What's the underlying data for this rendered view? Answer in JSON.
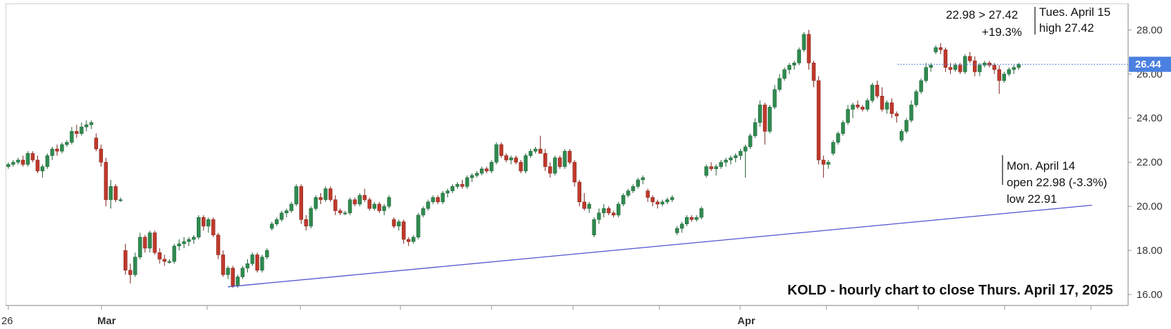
{
  "chart_data": {
    "type": "candlestick",
    "title": "KOLD - hourly chart to close Thurs. April 17, 2025",
    "y_axis": {
      "ticks": [
        "16.00",
        "18.00",
        "20.00",
        "22.00",
        "24.00",
        "26.00",
        "28.00"
      ],
      "ylim": [
        15.5,
        29.2
      ],
      "position": "right"
    },
    "x_axis": {
      "labels": [
        {
          "text": "26",
          "date": "2025-02-26",
          "bold": false
        },
        {
          "text": "Mar",
          "date": "2025-03-03",
          "bold": true
        },
        {
          "text": "Apr",
          "date": "2025-04-01",
          "bold": true
        }
      ]
    },
    "current_price": {
      "label": "26.44",
      "value": 26.44,
      "color": "#4a80e0"
    },
    "colors": {
      "up": "#2e8b4f",
      "down": "#c0392b",
      "trendline": "#5050d0",
      "up_wick": "#1e5e35",
      "down_wick": "#7a1f17"
    },
    "candles": [
      [
        21.8,
        22.0,
        21.7,
        21.9
      ],
      [
        21.9,
        22.1,
        21.8,
        22.0
      ],
      [
        22.0,
        22.2,
        21.9,
        22.1
      ],
      [
        22.1,
        22.3,
        21.8,
        21.9
      ],
      [
        21.9,
        22.5,
        21.8,
        22.4
      ],
      [
        22.4,
        22.5,
        22.0,
        22.1
      ],
      [
        22.1,
        22.3,
        21.5,
        21.6
      ],
      [
        21.6,
        21.9,
        21.3,
        21.8
      ],
      [
        21.8,
        22.4,
        21.7,
        22.3
      ],
      [
        22.3,
        22.7,
        22.1,
        22.6
      ],
      [
        22.6,
        22.8,
        22.3,
        22.5
      ],
      [
        22.5,
        22.9,
        22.4,
        22.8
      ],
      [
        22.8,
        23.0,
        22.7,
        22.9
      ],
      [
        22.9,
        23.6,
        22.8,
        23.4
      ],
      [
        23.4,
        23.7,
        23.1,
        23.3
      ],
      [
        23.3,
        23.8,
        23.2,
        23.6
      ],
      [
        23.6,
        23.9,
        23.4,
        23.7
      ],
      [
        23.7,
        23.9,
        23.5,
        23.8
      ],
      [
        23.1,
        23.3,
        22.5,
        22.6
      ],
      [
        22.6,
        22.8,
        21.8,
        22.0
      ],
      [
        22.0,
        22.2,
        20.0,
        20.3
      ],
      [
        20.3,
        21.2,
        19.9,
        20.9
      ],
      [
        20.9,
        21.0,
        20.2,
        20.3
      ],
      [
        20.3,
        20.4,
        20.2,
        20.3
      ],
      [
        18.0,
        18.3,
        16.9,
        17.1
      ],
      [
        17.1,
        17.4,
        16.5,
        16.9
      ],
      [
        16.9,
        17.9,
        16.8,
        17.7
      ],
      [
        17.7,
        18.8,
        17.6,
        18.6
      ],
      [
        18.6,
        18.7,
        17.9,
        18.1
      ],
      [
        18.1,
        18.9,
        17.9,
        18.8
      ],
      [
        18.8,
        18.9,
        17.8,
        17.9
      ],
      [
        17.9,
        18.1,
        17.4,
        17.6
      ],
      [
        17.6,
        17.8,
        17.3,
        17.5
      ],
      [
        17.5,
        17.6,
        17.4,
        17.5
      ],
      [
        17.5,
        18.3,
        17.4,
        18.2
      ],
      [
        18.2,
        18.5,
        18.0,
        18.3
      ],
      [
        18.3,
        18.6,
        18.1,
        18.4
      ],
      [
        18.4,
        18.6,
        18.2,
        18.5
      ],
      [
        18.5,
        18.7,
        18.3,
        18.6
      ],
      [
        18.6,
        19.6,
        18.5,
        19.5
      ],
      [
        19.5,
        19.6,
        18.9,
        19.1
      ],
      [
        19.1,
        19.5,
        18.8,
        19.4
      ],
      [
        19.4,
        19.5,
        18.6,
        18.7
      ],
      [
        18.7,
        18.8,
        17.6,
        17.8
      ],
      [
        17.8,
        18.0,
        16.8,
        16.9
      ],
      [
        16.9,
        17.3,
        16.7,
        17.2
      ],
      [
        17.2,
        17.3,
        16.3,
        16.4
      ],
      [
        16.4,
        16.9,
        16.3,
        16.8
      ],
      [
        16.8,
        17.3,
        16.7,
        17.2
      ],
      [
        17.2,
        17.6,
        17.0,
        17.4
      ],
      [
        17.4,
        17.9,
        17.3,
        17.8
      ],
      [
        17.8,
        17.9,
        17.0,
        17.1
      ],
      [
        17.1,
        17.8,
        17.0,
        17.7
      ],
      [
        17.7,
        18.1,
        17.6,
        18.0
      ],
      [
        19.0,
        19.3,
        18.9,
        19.2
      ],
      [
        19.2,
        19.5,
        19.1,
        19.4
      ],
      [
        19.4,
        19.8,
        19.3,
        19.7
      ],
      [
        19.7,
        19.9,
        19.5,
        19.8
      ],
      [
        19.8,
        20.2,
        19.7,
        20.1
      ],
      [
        20.1,
        21.0,
        20.0,
        20.9
      ],
      [
        20.9,
        21.0,
        19.2,
        19.4
      ],
      [
        19.4,
        19.6,
        18.9,
        19.1
      ],
      [
        19.1,
        20.0,
        19.0,
        19.9
      ],
      [
        19.9,
        20.5,
        19.8,
        20.4
      ],
      [
        20.4,
        20.6,
        20.1,
        20.3
      ],
      [
        20.3,
        20.9,
        20.2,
        20.8
      ],
      [
        20.8,
        20.9,
        20.2,
        20.3
      ],
      [
        20.3,
        20.5,
        19.6,
        19.8
      ],
      [
        19.8,
        19.9,
        19.6,
        19.7
      ],
      [
        19.7,
        19.8,
        19.6,
        19.7
      ],
      [
        19.7,
        20.4,
        19.6,
        20.3
      ],
      [
        20.3,
        20.4,
        20.0,
        20.1
      ],
      [
        20.1,
        20.6,
        20.0,
        20.5
      ],
      [
        20.5,
        20.8,
        20.2,
        20.3
      ],
      [
        20.3,
        20.4,
        19.8,
        19.9
      ],
      [
        19.9,
        20.2,
        19.8,
        20.1
      ],
      [
        20.1,
        20.2,
        19.7,
        19.8
      ],
      [
        19.8,
        20.1,
        19.6,
        20.0
      ],
      [
        20.0,
        20.5,
        19.9,
        20.4
      ],
      [
        19.4,
        19.5,
        19.0,
        19.1
      ],
      [
        19.1,
        19.4,
        18.9,
        19.3
      ],
      [
        19.3,
        19.4,
        18.3,
        18.5
      ],
      [
        18.5,
        18.6,
        18.2,
        18.4
      ],
      [
        18.4,
        18.7,
        18.3,
        18.6
      ],
      [
        18.6,
        19.7,
        18.5,
        19.6
      ],
      [
        19.6,
        20.0,
        19.5,
        19.9
      ],
      [
        19.9,
        20.3,
        19.8,
        20.2
      ],
      [
        20.2,
        20.5,
        20.1,
        20.4
      ],
      [
        20.4,
        20.5,
        20.1,
        20.2
      ],
      [
        20.2,
        20.7,
        20.1,
        20.6
      ],
      [
        20.6,
        20.8,
        20.4,
        20.7
      ],
      [
        20.7,
        21.0,
        20.6,
        20.9
      ],
      [
        20.9,
        21.1,
        20.8,
        21.0
      ],
      [
        21.0,
        21.2,
        20.8,
        20.9
      ],
      [
        20.9,
        21.4,
        20.8,
        21.3
      ],
      [
        21.3,
        21.5,
        21.1,
        21.4
      ],
      [
        21.4,
        21.6,
        21.3,
        21.5
      ],
      [
        21.5,
        21.8,
        21.4,
        21.7
      ],
      [
        21.7,
        21.8,
        21.5,
        21.6
      ],
      [
        21.6,
        22.1,
        21.5,
        22.0
      ],
      [
        22.0,
        22.9,
        21.9,
        22.8
      ],
      [
        22.8,
        22.9,
        22.2,
        22.3
      ],
      [
        22.3,
        22.4,
        22.0,
        22.1
      ],
      [
        22.1,
        22.3,
        21.9,
        22.2
      ],
      [
        22.2,
        22.3,
        21.9,
        22.0
      ],
      [
        22.0,
        22.1,
        21.5,
        21.6
      ],
      [
        21.6,
        22.4,
        21.5,
        22.3
      ],
      [
        22.3,
        22.6,
        22.2,
        22.5
      ],
      [
        22.5,
        22.7,
        22.4,
        22.6
      ],
      [
        22.6,
        23.2,
        22.5,
        22.4
      ],
      [
        22.4,
        22.6,
        21.6,
        21.8
      ],
      [
        21.8,
        22.0,
        21.3,
        21.5
      ],
      [
        21.5,
        22.3,
        21.4,
        22.2
      ],
      [
        22.2,
        22.3,
        21.7,
        21.8
      ],
      [
        21.8,
        22.6,
        21.7,
        22.5
      ],
      [
        22.5,
        22.6,
        21.9,
        22.0
      ],
      [
        22.0,
        22.1,
        20.9,
        21.1
      ],
      [
        21.1,
        21.2,
        20.0,
        20.2
      ],
      [
        20.2,
        20.6,
        19.8,
        19.9
      ],
      [
        19.9,
        20.2,
        19.7,
        20.1
      ],
      [
        18.7,
        19.5,
        18.6,
        19.4
      ],
      [
        19.4,
        19.9,
        19.2,
        19.7
      ],
      [
        19.7,
        20.1,
        19.5,
        19.9
      ],
      [
        19.9,
        20.0,
        19.6,
        19.7
      ],
      [
        19.7,
        19.8,
        19.5,
        19.6
      ],
      [
        19.6,
        20.2,
        19.5,
        20.1
      ],
      [
        20.1,
        20.6,
        20.0,
        20.5
      ],
      [
        20.5,
        20.8,
        20.4,
        20.7
      ],
      [
        20.7,
        21.0,
        20.6,
        20.9
      ],
      [
        20.9,
        21.3,
        20.8,
        21.2
      ],
      [
        21.2,
        21.4,
        21.0,
        21.3
      ],
      [
        20.7,
        20.8,
        20.2,
        20.4
      ],
      [
        20.4,
        20.5,
        20.0,
        20.2
      ],
      [
        20.2,
        20.3,
        19.9,
        20.1
      ],
      [
        20.1,
        20.3,
        20.0,
        20.2
      ],
      [
        20.2,
        20.4,
        20.1,
        20.3
      ],
      [
        20.3,
        20.5,
        20.2,
        20.4
      ],
      [
        18.8,
        19.1,
        18.7,
        19.0
      ],
      [
        19.0,
        19.3,
        18.8,
        19.2
      ],
      [
        19.2,
        19.6,
        19.1,
        19.5
      ],
      [
        19.5,
        19.6,
        19.3,
        19.4
      ],
      [
        19.4,
        19.6,
        19.3,
        19.5
      ],
      [
        19.5,
        20.0,
        19.4,
        19.9
      ],
      [
        21.4,
        21.9,
        21.3,
        21.8
      ],
      [
        21.8,
        22.0,
        21.6,
        21.7
      ],
      [
        21.7,
        21.9,
        21.4,
        21.8
      ],
      [
        21.8,
        22.1,
        21.7,
        22.0
      ],
      [
        22.0,
        22.2,
        21.8,
        22.1
      ],
      [
        22.1,
        22.3,
        21.9,
        22.2
      ],
      [
        22.2,
        22.4,
        22.0,
        22.3
      ],
      [
        22.3,
        22.6,
        22.1,
        22.5
      ],
      [
        22.5,
        22.8,
        21.3,
        22.7
      ],
      [
        22.7,
        23.3,
        22.6,
        23.2
      ],
      [
        23.2,
        24.0,
        23.1,
        23.8
      ],
      [
        23.8,
        24.8,
        23.6,
        24.6
      ],
      [
        24.6,
        24.7,
        22.8,
        23.4
      ],
      [
        23.4,
        24.6,
        23.3,
        24.5
      ],
      [
        24.5,
        25.5,
        24.4,
        25.3
      ],
      [
        25.3,
        26.0,
        25.2,
        25.8
      ],
      [
        25.8,
        26.3,
        25.7,
        26.2
      ],
      [
        26.2,
        26.5,
        26.0,
        26.4
      ],
      [
        26.4,
        26.6,
        26.2,
        26.5
      ],
      [
        26.5,
        27.2,
        26.4,
        27.1
      ],
      [
        27.1,
        27.9,
        27.0,
        27.8
      ],
      [
        27.8,
        28.0,
        26.2,
        26.5
      ],
      [
        26.5,
        26.6,
        25.4,
        25.7
      ],
      [
        25.7,
        25.9,
        21.9,
        22.1
      ],
      [
        22.1,
        22.3,
        21.3,
        21.9
      ],
      [
        21.9,
        22.1,
        21.7,
        22.0
      ],
      [
        22.4,
        23.0,
        22.3,
        22.9
      ],
      [
        22.9,
        23.4,
        22.8,
        23.3
      ],
      [
        23.3,
        23.9,
        23.2,
        23.8
      ],
      [
        23.8,
        24.6,
        23.7,
        24.4
      ],
      [
        24.4,
        24.7,
        24.0,
        24.6
      ],
      [
        24.6,
        24.8,
        24.4,
        24.5
      ],
      [
        24.5,
        24.6,
        24.3,
        24.4
      ],
      [
        24.4,
        24.9,
        24.3,
        24.8
      ],
      [
        24.8,
        25.6,
        24.7,
        25.5
      ],
      [
        25.5,
        25.7,
        24.9,
        25.0
      ],
      [
        25.0,
        25.4,
        24.3,
        24.4
      ],
      [
        24.4,
        24.8,
        24.2,
        24.7
      ],
      [
        24.7,
        24.9,
        24.0,
        24.2
      ],
      [
        24.2,
        24.3,
        23.8,
        24.1
      ],
      [
        23.0,
        23.5,
        22.9,
        23.4
      ],
      [
        23.4,
        24.0,
        23.3,
        23.9
      ],
      [
        23.9,
        24.8,
        23.8,
        24.6
      ],
      [
        24.6,
        25.3,
        24.5,
        25.2
      ],
      [
        25.2,
        25.8,
        25.1,
        25.7
      ],
      [
        25.7,
        26.5,
        25.6,
        26.3
      ],
      [
        26.3,
        26.5,
        26.1,
        26.4
      ],
      [
        27.0,
        27.3,
        26.9,
        27.2
      ],
      [
        27.2,
        27.4,
        26.9,
        27.1
      ],
      [
        27.1,
        27.2,
        26.1,
        26.3
      ],
      [
        26.3,
        26.5,
        26.0,
        26.2
      ],
      [
        26.2,
        26.5,
        26.1,
        26.4
      ],
      [
        26.4,
        26.5,
        26.0,
        26.1
      ],
      [
        26.1,
        26.9,
        26.0,
        26.8
      ],
      [
        26.8,
        27.0,
        26.5,
        26.6
      ],
      [
        26.6,
        26.8,
        25.9,
        26.1
      ],
      [
        26.1,
        26.5,
        25.9,
        26.4
      ],
      [
        26.4,
        26.6,
        26.3,
        26.5
      ],
      [
        26.5,
        26.6,
        26.3,
        26.4
      ],
      [
        26.4,
        26.5,
        26.0,
        26.2
      ],
      [
        26.2,
        26.4,
        25.1,
        25.7
      ],
      [
        25.7,
        26.1,
        25.6,
        26.0
      ],
      [
        26.0,
        26.3,
        25.9,
        26.2
      ],
      [
        26.2,
        26.4,
        26.0,
        26.3
      ],
      [
        26.3,
        26.5,
        26.2,
        26.44
      ]
    ],
    "annotations": [
      {
        "id": "rally",
        "lines": [
          "22.98 > 27.42",
          "+19.3%"
        ]
      },
      {
        "id": "tues",
        "lines": [
          "Tues. April 15",
          "high 27.42"
        ]
      },
      {
        "id": "mon",
        "lines": [
          "Mon. April 14",
          "open 22.98 (-3.3%)",
          "low 22.91"
        ]
      }
    ],
    "trendline": {
      "start": {
        "candle": 45,
        "value": 16.35
      },
      "end": {
        "candle": 222,
        "value": 20.05
      }
    }
  }
}
